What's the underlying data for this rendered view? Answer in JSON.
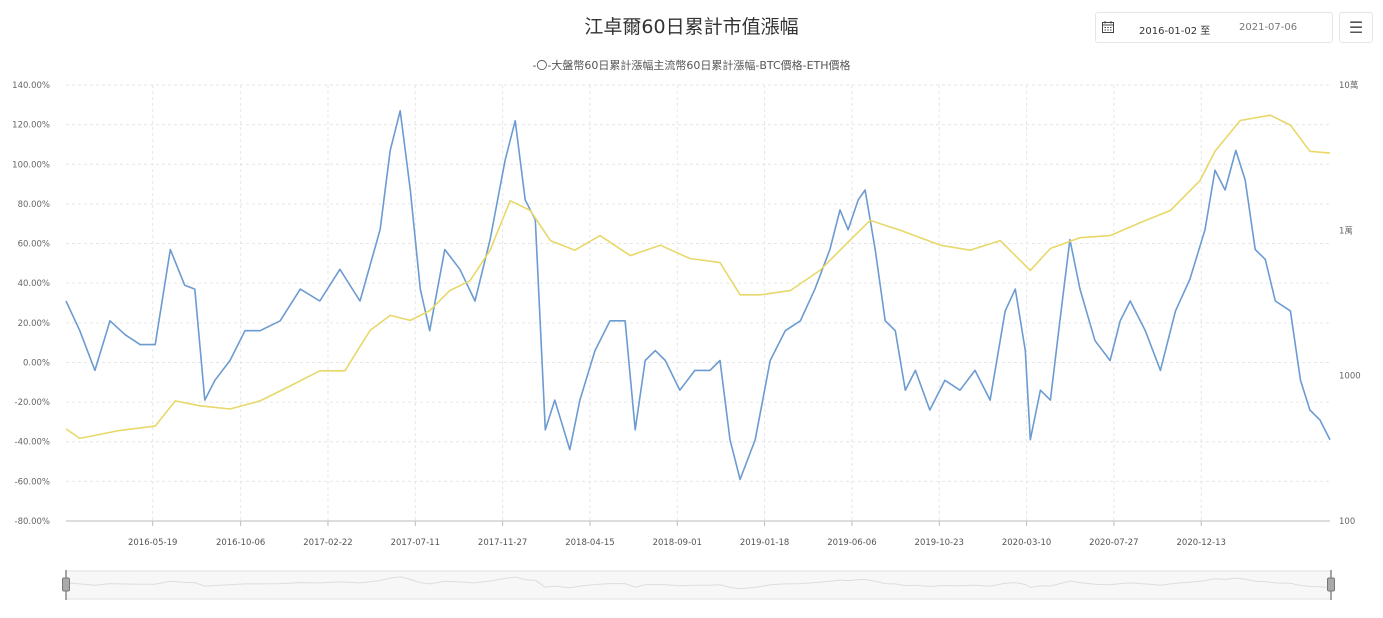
{
  "header": {
    "title": "江卓爾60日累計市值漲幅",
    "date_from": "2016-01-02 至",
    "date_to": "2021-07-06",
    "calendar_icon": "calendar-icon",
    "menu_icon": "hamburger-menu-icon"
  },
  "chart_data": {
    "type": "line",
    "title": "江卓爾60日累計市值漲幅",
    "legend_text": "-〇-大盤幣60日累計漲幅主流幣60日累計漲幅-BTC價格-ETH價格",
    "legend_placement": "top-center",
    "start_date": "2016-01-02",
    "end_date": "2021-07-06",
    "x_unit": "days since 2016-01-02",
    "x_ticks": [
      "2016-05-19",
      "2016-10-06",
      "2017-02-22",
      "2017-07-11",
      "2017-11-27",
      "2018-04-15",
      "2018-09-01",
      "2019-01-18",
      "2019-06-06",
      "2019-10-23",
      "2020-03-10",
      "2020-07-27",
      "2020-12-13"
    ],
    "y_left": {
      "ylim": [
        -80,
        140
      ],
      "ticks": [
        "-80.00%",
        "-60.00%",
        "-40.00%",
        "-20.00%",
        "0.00%",
        "20.00%",
        "40.00%",
        "60.00%",
        "80.00%",
        "100.00%",
        "120.00%",
        "140.00%"
      ]
    },
    "y_right": {
      "scale": "log",
      "ylim": [
        100,
        100000
      ],
      "ticks": [
        {
          "v": 100,
          "label": "100"
        },
        {
          "v": 1000,
          "label": "1000"
        },
        {
          "v": 10000,
          "label": "1萬"
        },
        {
          "v": 100000,
          "label": "10萬"
        }
      ]
    },
    "grid": true,
    "series": [
      {
        "name": "60日累計漲幅",
        "axis": "left",
        "color": "#6b9bd1",
        "points": [
          [
            0,
            31
          ],
          [
            22,
            16
          ],
          [
            46,
            -4
          ],
          [
            70,
            21
          ],
          [
            94,
            14
          ],
          [
            118,
            9
          ],
          [
            142,
            9
          ],
          [
            166,
            57
          ],
          [
            189,
            39
          ],
          [
            205,
            37
          ],
          [
            221,
            -19
          ],
          [
            237,
            -9
          ],
          [
            261,
            1
          ],
          [
            285,
            16
          ],
          [
            309,
            16
          ],
          [
            341,
            21
          ],
          [
            373,
            37
          ],
          [
            404,
            31
          ],
          [
            436,
            47
          ],
          [
            468,
            31
          ],
          [
            500,
            67
          ],
          [
            516,
            107
          ],
          [
            532,
            127
          ],
          [
            548,
            87
          ],
          [
            564,
            37
          ],
          [
            579,
            16
          ],
          [
            603,
            57
          ],
          [
            627,
            47
          ],
          [
            651,
            31
          ],
          [
            675,
            62
          ],
          [
            699,
            102
          ],
          [
            715,
            122
          ],
          [
            731,
            82
          ],
          [
            747,
            72
          ],
          [
            763,
            -34
          ],
          [
            778,
            -19
          ],
          [
            802,
            -44
          ],
          [
            818,
            -19
          ],
          [
            842,
            6
          ],
          [
            866,
            21
          ],
          [
            890,
            21
          ],
          [
            906,
            -34
          ],
          [
            922,
            1
          ],
          [
            938,
            6
          ],
          [
            954,
            1
          ],
          [
            977,
            -14
          ],
          [
            1001,
            -4
          ],
          [
            1025,
            -4
          ],
          [
            1041,
            1
          ],
          [
            1057,
            -39
          ],
          [
            1073,
            -59
          ],
          [
            1097,
            -39
          ],
          [
            1121,
            1
          ],
          [
            1145,
            16
          ],
          [
            1169,
            21
          ],
          [
            1192,
            37
          ],
          [
            1216,
            57
          ],
          [
            1232,
            77
          ],
          [
            1245,
            67
          ],
          [
            1261,
            82
          ],
          [
            1272,
            87
          ],
          [
            1288,
            57
          ],
          [
            1304,
            21
          ],
          [
            1320,
            16
          ],
          [
            1336,
            -14
          ],
          [
            1352,
            -4
          ],
          [
            1375,
            -24
          ],
          [
            1399,
            -9
          ],
          [
            1423,
            -14
          ],
          [
            1447,
            -4
          ],
          [
            1471,
            -19
          ],
          [
            1495,
            26
          ],
          [
            1511,
            37
          ],
          [
            1527,
            6
          ],
          [
            1535,
            -39
          ],
          [
            1551,
            -14
          ],
          [
            1567,
            -19
          ],
          [
            1582,
            21
          ],
          [
            1598,
            62
          ],
          [
            1614,
            37
          ],
          [
            1638,
            11
          ],
          [
            1662,
            1
          ],
          [
            1678,
            21
          ],
          [
            1694,
            31
          ],
          [
            1718,
            16
          ],
          [
            1742,
            -4
          ],
          [
            1766,
            26
          ],
          [
            1789,
            42
          ],
          [
            1813,
            67
          ],
          [
            1829,
            97
          ],
          [
            1845,
            87
          ],
          [
            1862,
            107
          ],
          [
            1877,
            92
          ],
          [
            1893,
            57
          ],
          [
            1909,
            52
          ],
          [
            1925,
            31
          ],
          [
            1949,
            26
          ],
          [
            1965,
            -9
          ],
          [
            1980,
            -24
          ],
          [
            1996,
            -29
          ],
          [
            2012,
            -39
          ]
        ]
      },
      {
        "name": "BTC價格",
        "axis": "right",
        "color": "#e8d86a",
        "points": [
          [
            0,
            430
          ],
          [
            22,
            370
          ],
          [
            86,
            420
          ],
          [
            142,
            450
          ],
          [
            174,
            670
          ],
          [
            213,
            620
          ],
          [
            261,
            590
          ],
          [
            309,
            670
          ],
          [
            357,
            850
          ],
          [
            404,
            1080
          ],
          [
            444,
            1080
          ],
          [
            484,
            2050
          ],
          [
            516,
            2600
          ],
          [
            548,
            2400
          ],
          [
            579,
            2800
          ],
          [
            611,
            3850
          ],
          [
            643,
            4500
          ],
          [
            675,
            7300
          ],
          [
            707,
            16000
          ],
          [
            739,
            13700
          ],
          [
            771,
            8500
          ],
          [
            810,
            7300
          ],
          [
            850,
            9200
          ],
          [
            898,
            6700
          ],
          [
            946,
            7900
          ],
          [
            993,
            6400
          ],
          [
            1041,
            6000
          ],
          [
            1073,
            3600
          ],
          [
            1105,
            3600
          ],
          [
            1153,
            3850
          ],
          [
            1200,
            5300
          ],
          [
            1240,
            7900
          ],
          [
            1280,
            11700
          ],
          [
            1328,
            10000
          ],
          [
            1392,
            7900
          ],
          [
            1439,
            7300
          ],
          [
            1487,
            8500
          ],
          [
            1535,
            5300
          ],
          [
            1567,
            7500
          ],
          [
            1614,
            8900
          ],
          [
            1662,
            9200
          ],
          [
            1710,
            11300
          ],
          [
            1758,
            13700
          ],
          [
            1805,
            22000
          ],
          [
            1829,
            35000
          ],
          [
            1869,
            57000
          ],
          [
            1917,
            62000
          ],
          [
            1949,
            53000
          ],
          [
            1980,
            35000
          ],
          [
            2012,
            34000
          ]
        ]
      }
    ]
  }
}
